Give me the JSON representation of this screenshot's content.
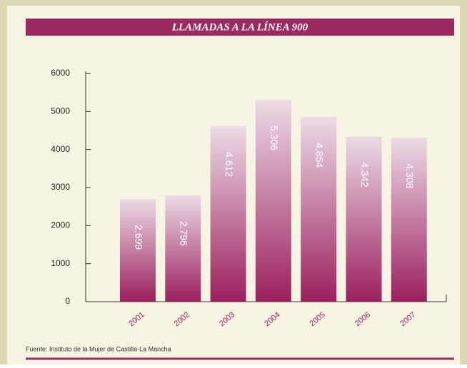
{
  "chart_data": {
    "type": "bar",
    "title": "LLAMADAS A LA LÍNEA 900",
    "categories": [
      "2001",
      "2002",
      "2003",
      "2004",
      "2005",
      "2006",
      "2007"
    ],
    "values": [
      2699,
      2796,
      4612,
      5306,
      4854,
      4342,
      4308
    ],
    "value_labels": [
      "2.699",
      "2.796",
      "4.612",
      "5.306",
      "4.854",
      "4.342",
      "4.308"
    ],
    "color": "#9b1f5e",
    "ylim": [
      0,
      6000
    ],
    "yticks": [
      0,
      1000,
      2000,
      3000,
      4000,
      5000,
      6000
    ],
    "grid": false,
    "source": "Fuente: Instituto de la Mujer de Castilla-La Mancha"
  }
}
